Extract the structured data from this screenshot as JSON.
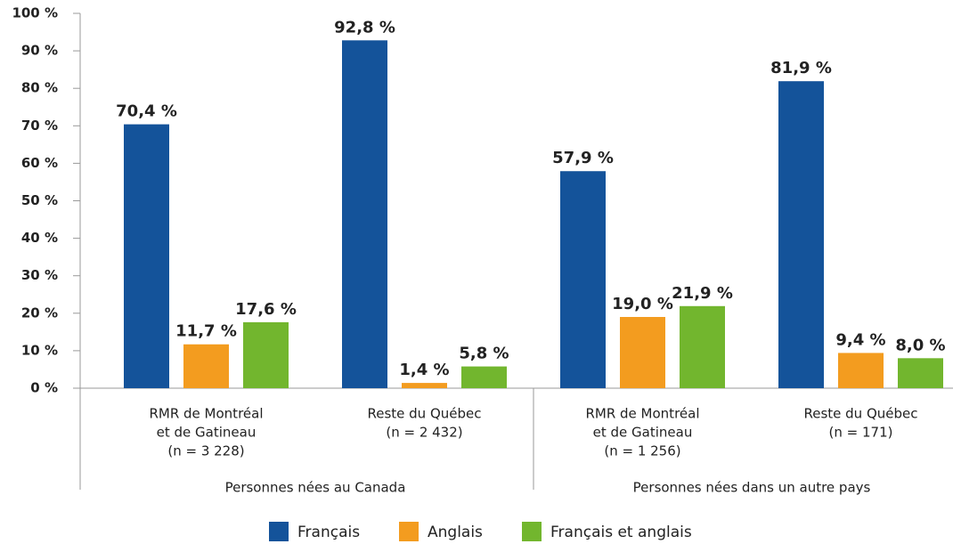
{
  "chart_data": {
    "type": "bar",
    "categories": [
      [
        "RMR de Montréal",
        "et de Gatineau",
        "(n = 3 228)"
      ],
      [
        "Reste du Québec",
        "(n = 2 432)"
      ],
      [
        "RMR de Montréal",
        "et de Gatineau",
        "(n = 1 256)"
      ],
      [
        "Reste du Québec",
        "(n = 171)"
      ]
    ],
    "groups": [
      "Personnes nées au Canada",
      "Personnes nées dans un autre pays"
    ],
    "series": [
      {
        "name": "Français",
        "color": "#14539a",
        "values": [
          70.4,
          92.8,
          57.9,
          81.9
        ],
        "value_labels": [
          "70,4 %",
          "92,8 %",
          "57,9 %",
          "81,9 %"
        ]
      },
      {
        "name": "Anglais",
        "color": "#f39c1f",
        "values": [
          11.7,
          1.4,
          19.0,
          9.4
        ],
        "value_labels": [
          "11,7 %",
          "1,4 %",
          "19,0 %",
          "9,4 %"
        ]
      },
      {
        "name": "Français et anglais",
        "color": "#72b62e",
        "values": [
          17.6,
          5.8,
          21.9,
          8.0
        ],
        "value_labels": [
          "17,6 %",
          "5,8 %",
          "21,9 %",
          "8,0 %"
        ]
      }
    ],
    "ylim": [
      0,
      100
    ],
    "yticks": [
      {
        "value": 0,
        "label": "0 %"
      },
      {
        "value": 10,
        "label": "10 %"
      },
      {
        "value": 20,
        "label": "20 %"
      },
      {
        "value": 30,
        "label": "30 %"
      },
      {
        "value": 40,
        "label": "40 %"
      },
      {
        "value": 50,
        "label": "50 %"
      },
      {
        "value": 60,
        "label": "60 %"
      },
      {
        "value": 70,
        "label": "70 %"
      },
      {
        "value": 80,
        "label": "80 %"
      },
      {
        "value": 90,
        "label": "90 %"
      },
      {
        "value": 100,
        "label": "100 %"
      }
    ],
    "legend": "bottom",
    "grid": false
  }
}
